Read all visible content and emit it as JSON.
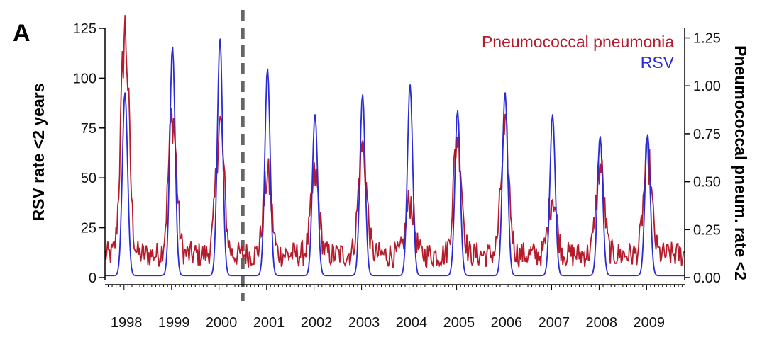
{
  "chart_data": {
    "type": "line",
    "panel_label": "A",
    "ylabel_left": "RSV rate <2 years",
    "ylabel_right": "Pneumococcal pneum. rate <2",
    "ylim_left": [
      0,
      125
    ],
    "ylim_right": [
      0,
      1.3
    ],
    "yticks_left": [
      "0",
      "25",
      "50",
      "75",
      "100",
      "125"
    ],
    "yticks_right": [
      "0.00",
      "0.25",
      "0.50",
      "0.75",
      "1.00",
      "1.25"
    ],
    "x_tick_labels": [
      "1998",
      "1999",
      "2000",
      "2001",
      "2002",
      "2003",
      "2004",
      "2005",
      "2006",
      "2007",
      "2008",
      "2009"
    ],
    "xlim": [
      1997.6,
      2009.8
    ],
    "vertical_marker_x": 2000.5,
    "legend_placement": "top-right",
    "colors": {
      "rsv": "#2b2bd6",
      "pneumo": "#b51b2b",
      "marker": "#666666"
    },
    "series": [
      {
        "name": "Pneumococcal pneumonia",
        "axis": "right",
        "peaks": [
          {
            "year": 1998,
            "peak": 1.28
          },
          {
            "year": 1999,
            "peak": 0.84
          },
          {
            "year": 2000,
            "peak": 0.8
          },
          {
            "year": 2001,
            "peak": 0.53
          },
          {
            "year": 2002,
            "peak": 0.52
          },
          {
            "year": 2003,
            "peak": 0.68
          },
          {
            "year": 2004,
            "peak": 0.4
          },
          {
            "year": 2005,
            "peak": 0.75
          },
          {
            "year": 2006,
            "peak": 0.74
          },
          {
            "year": 2007,
            "peak": 0.43
          },
          {
            "year": 2008,
            "peak": 0.58
          },
          {
            "year": 2009,
            "peak": 0.62
          }
        ],
        "baseline": 0.12
      },
      {
        "name": "RSV",
        "axis": "left",
        "peaks": [
          {
            "year": 1998,
            "peak": 93
          },
          {
            "year": 1999,
            "peak": 116
          },
          {
            "year": 2000,
            "peak": 120
          },
          {
            "year": 2001,
            "peak": 105
          },
          {
            "year": 2002,
            "peak": 82
          },
          {
            "year": 2003,
            "peak": 92
          },
          {
            "year": 2004,
            "peak": 97
          },
          {
            "year": 2005,
            "peak": 84
          },
          {
            "year": 2006,
            "peak": 93
          },
          {
            "year": 2007,
            "peak": 82
          },
          {
            "year": 2008,
            "peak": 71
          },
          {
            "year": 2009,
            "peak": 72
          }
        ],
        "baseline": 1
      }
    ]
  }
}
